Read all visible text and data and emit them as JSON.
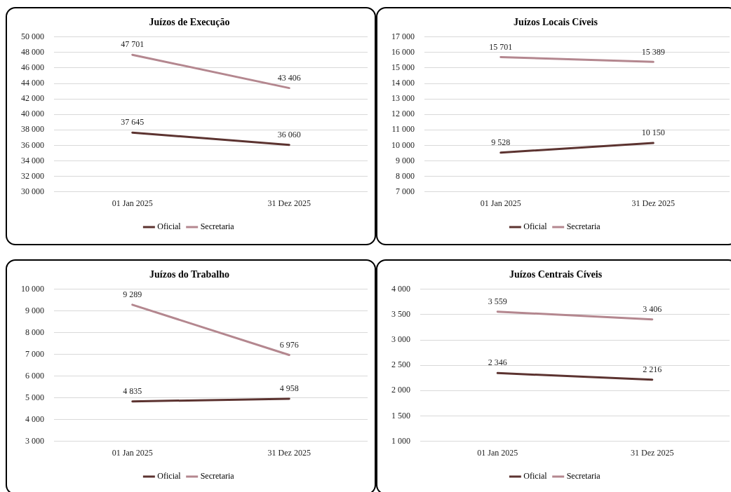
{
  "chart_data": [
    {
      "type": "line",
      "title": "Juízos de Execução",
      "categories": [
        "01 Jan 2025",
        "31 Dez 2025"
      ],
      "ylim": [
        30000,
        50000
      ],
      "yticks": [
        {
          "value": 30000,
          "label": "30 000"
        },
        {
          "value": 32000,
          "label": "32 000"
        },
        {
          "value": 34000,
          "label": "34 000"
        },
        {
          "value": 36000,
          "label": "36 000"
        },
        {
          "value": 38000,
          "label": "38 000"
        },
        {
          "value": 40000,
          "label": "40 000"
        },
        {
          "value": 42000,
          "label": "42 000"
        },
        {
          "value": 44000,
          "label": "44 000"
        },
        {
          "value": 46000,
          "label": "46 000"
        },
        {
          "value": 48000,
          "label": "48 000"
        },
        {
          "value": 50000,
          "label": "50 000"
        }
      ],
      "grid": "y",
      "legend": "bottom",
      "marker": "none",
      "line_style": "solid",
      "series": [
        {
          "name": "Oficial",
          "color": "#5c3330",
          "values": [
            37645,
            36060
          ],
          "value_labels": [
            "37 645",
            "36 060"
          ]
        },
        {
          "name": "Secretaria",
          "color": "#b4878f",
          "values": [
            47701,
            43406
          ],
          "value_labels": [
            "47 701",
            "43 406"
          ]
        }
      ]
    },
    {
      "type": "line",
      "title": "Juízos Locais Cíveis",
      "categories": [
        "01 Jan 2025",
        "31 Dez 2025"
      ],
      "ylim": [
        7000,
        17000
      ],
      "yticks": [
        {
          "value": 7000,
          "label": "7 000"
        },
        {
          "value": 8000,
          "label": "8 000"
        },
        {
          "value": 9000,
          "label": "9 000"
        },
        {
          "value": 10000,
          "label": "10 000"
        },
        {
          "value": 11000,
          "label": "11 000"
        },
        {
          "value": 12000,
          "label": "12 000"
        },
        {
          "value": 13000,
          "label": "13 000"
        },
        {
          "value": 14000,
          "label": "14 000"
        },
        {
          "value": 15000,
          "label": "15 000"
        },
        {
          "value": 16000,
          "label": "16 000"
        },
        {
          "value": 17000,
          "label": "17 000"
        }
      ],
      "grid": "y",
      "legend": "bottom",
      "marker": "none",
      "line_style": "solid",
      "series": [
        {
          "name": "Oficial",
          "color": "#5c3330",
          "values": [
            9528,
            10150
          ],
          "value_labels": [
            "9 528",
            "10 150"
          ]
        },
        {
          "name": "Secretaria",
          "color": "#b4878f",
          "values": [
            15701,
            15389
          ],
          "value_labels": [
            "15 701",
            "15 389"
          ]
        }
      ]
    },
    {
      "type": "line",
      "title": "Juízos do Trabalho",
      "categories": [
        "01 Jan 2025",
        "31 Dez 2025"
      ],
      "ylim": [
        3000,
        10000
      ],
      "yticks": [
        {
          "value": 3000,
          "label": "3 000"
        },
        {
          "value": 4000,
          "label": "4 000"
        },
        {
          "value": 5000,
          "label": "5 000"
        },
        {
          "value": 6000,
          "label": "6 000"
        },
        {
          "value": 7000,
          "label": "7 000"
        },
        {
          "value": 8000,
          "label": "8 000"
        },
        {
          "value": 9000,
          "label": "9 000"
        },
        {
          "value": 10000,
          "label": "10 000"
        }
      ],
      "grid": "y",
      "legend": "bottom",
      "marker": "none",
      "line_style": "solid",
      "series": [
        {
          "name": "Oficial",
          "color": "#5c3330",
          "values": [
            4835,
            4958
          ],
          "value_labels": [
            "4 835",
            "4 958"
          ]
        },
        {
          "name": "Secretaria",
          "color": "#b4878f",
          "values": [
            9289,
            6976
          ],
          "value_labels": [
            "9 289",
            "6 976"
          ]
        }
      ]
    },
    {
      "type": "line",
      "title": "Juízos Centrais Cíveis",
      "categories": [
        "01 Jan 2025",
        "31 Dez 2025"
      ],
      "ylim": [
        1000,
        4000
      ],
      "yticks": [
        {
          "value": 1000,
          "label": "1 000"
        },
        {
          "value": 1500,
          "label": "1 500"
        },
        {
          "value": 2000,
          "label": "2 000"
        },
        {
          "value": 2500,
          "label": "2 500"
        },
        {
          "value": 3000,
          "label": "3 000"
        },
        {
          "value": 3500,
          "label": "3 500"
        },
        {
          "value": 4000,
          "label": "4 000"
        }
      ],
      "grid": "y",
      "legend": "bottom",
      "marker": "none",
      "line_style": "solid",
      "series": [
        {
          "name": "Oficial",
          "color": "#5c3330",
          "values": [
            2346,
            2216
          ],
          "value_labels": [
            "2 346",
            "2 216"
          ]
        },
        {
          "name": "Secretaria",
          "color": "#b4878f",
          "values": [
            3559,
            3406
          ],
          "value_labels": [
            "3 559",
            "3 406"
          ]
        }
      ]
    }
  ]
}
